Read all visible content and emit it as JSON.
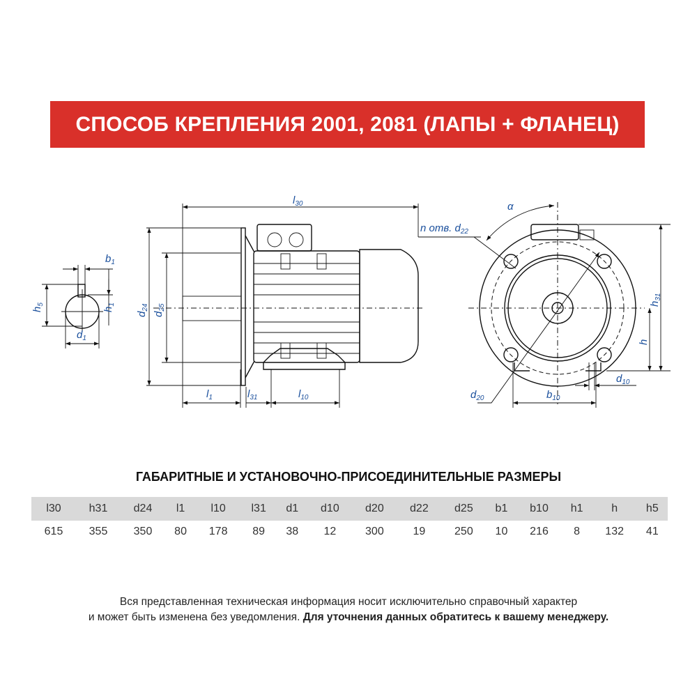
{
  "header": {
    "title": "СПОСОБ КРЕПЛЕНИЯ 2001, 2081 (ЛАПЫ + ФЛАНЕЦ)",
    "accent_color": "#d9302a"
  },
  "drawing": {
    "label_color": "#1a4f9c",
    "labels": {
      "l30": {
        "main": "l",
        "sub": "30"
      },
      "n_d22": {
        "main": "n отв. d",
        "sub": "22"
      },
      "alpha": {
        "main": "α",
        "sub": ""
      },
      "b1": {
        "main": "b",
        "sub": "1"
      },
      "h5": {
        "main": "h",
        "sub": "5"
      },
      "h1": {
        "main": "h",
        "sub": "1"
      },
      "d1": {
        "main": "d",
        "sub": "1"
      },
      "d24": {
        "main": "d",
        "sub": "24"
      },
      "d25": {
        "main": "d",
        "sub": "25"
      },
      "l1": {
        "main": "l",
        "sub": "1"
      },
      "l31": {
        "main": "l",
        "sub": "31"
      },
      "l10": {
        "main": "l",
        "sub": "10"
      },
      "h31": {
        "main": "h",
        "sub": "31"
      },
      "h": {
        "main": "h",
        "sub": ""
      },
      "d10": {
        "main": "d",
        "sub": "10"
      },
      "d20": {
        "main": "d",
        "sub": "20"
      },
      "b10": {
        "main": "b",
        "sub": "10"
      }
    }
  },
  "dimensions": {
    "title": "ГАБАРИТНЫЕ И УСТАНОВОЧНО-ПРИСОЕДИНИТЕЛЬНЫЕ РАЗМЕРЫ",
    "columns": [
      "l30",
      "h31",
      "d24",
      "l1",
      "l10",
      "l31",
      "d1",
      "d10",
      "d20",
      "d22",
      "d25",
      "b1",
      "b10",
      "h1",
      "h",
      "h5"
    ],
    "values": [
      "615",
      "355",
      "350",
      "80",
      "178",
      "89",
      "38",
      "12",
      "300",
      "19",
      "250",
      "10",
      "216",
      "8",
      "132",
      "41"
    ]
  },
  "footer": {
    "line1": "Вся представленная техническая информация носит исключительно справочный характер",
    "line2_regular": "и может быть изменена без уведомления.",
    "line2_bold": "Для уточнения данных обратитесь к вашему менеджеру."
  }
}
